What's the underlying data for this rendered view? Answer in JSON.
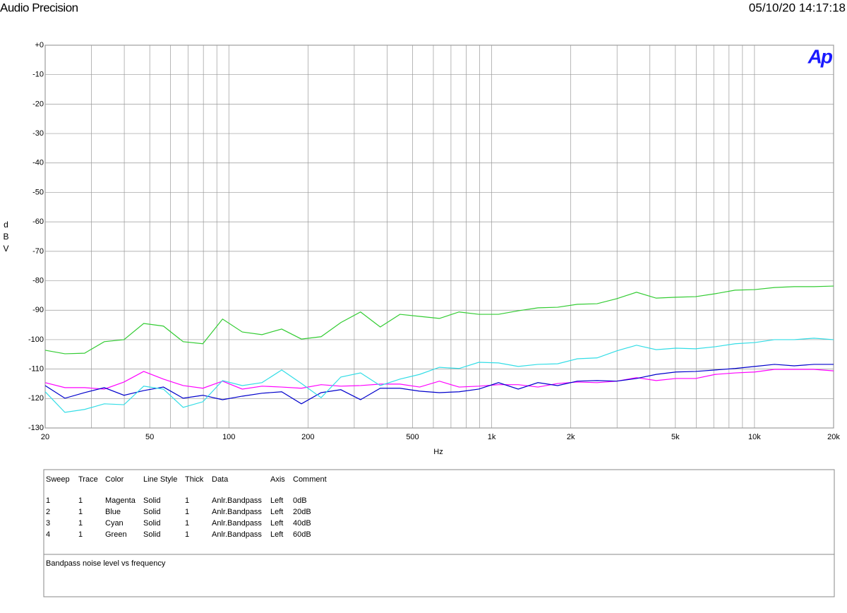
{
  "header": {
    "title": "Audio Precision",
    "timestamp": "05/10/20 14:17:18",
    "logo": "Ap"
  },
  "chart_data": {
    "type": "line",
    "xlabel": "Hz",
    "ylabel": "dBV",
    "xscale": "log",
    "grid": true,
    "xlim": [
      20,
      20000
    ],
    "ylim": [
      -130,
      0
    ],
    "xticks": [
      20,
      50,
      100,
      200,
      500,
      {
        "value": 1000,
        "label": "1k"
      },
      {
        "value": 2000,
        "label": "2k"
      },
      {
        "value": 5000,
        "label": "5k"
      },
      {
        "value": 10000,
        "label": "10k"
      },
      {
        "value": 20000,
        "label": "20k"
      }
    ],
    "xminor": [
      30,
      40,
      60,
      70,
      80,
      90,
      300,
      400,
      600,
      700,
      800,
      900,
      3000,
      4000,
      6000,
      7000,
      8000,
      9000
    ],
    "yticks": [
      {
        "value": 0,
        "label": "+0"
      },
      -10,
      -20,
      -30,
      -40,
      -50,
      -60,
      -70,
      -80,
      -90,
      -100,
      -110,
      -120,
      -130
    ],
    "x": [
      20,
      23.77,
      28.25,
      33.57,
      39.9,
      47.42,
      56.36,
      66.99,
      79.62,
      94.62,
      112.47,
      133.67,
      158.87,
      188.81,
      224.4,
      266.7,
      316.98,
      376.7,
      447.7,
      532.1,
      632.5,
      751.7,
      893.4,
      1061.8,
      1262,
      1500,
      1782,
      2118,
      2518,
      2992,
      3557,
      4227,
      5024,
      5971,
      7097,
      8435,
      10025,
      11915,
      14161,
      16830,
      20000
    ],
    "series": [
      {
        "color": "#ff00ff",
        "values": [
          -114.6,
          -116.3,
          -116.3,
          -116.8,
          -114.4,
          -110.8,
          -113.4,
          -115.6,
          -116.5,
          -114.1,
          -116.8,
          -115.8,
          -116.1,
          -116.5,
          -115.3,
          -115.8,
          -115.6,
          -115.1,
          -115.1,
          -116.1,
          -114.1,
          -116.1,
          -115.8,
          -115.3,
          -115.3,
          -116.1,
          -114.9,
          -114.4,
          -114.6,
          -114.1,
          -112.9,
          -113.9,
          -113.2,
          -113.2,
          -111.8,
          -111.3,
          -111.0,
          -110.1,
          -110.1,
          -110.1,
          -110.6
        ]
      },
      {
        "color": "#0000cc",
        "values": [
          -115.6,
          -119.9,
          -118.0,
          -116.3,
          -118.9,
          -117.3,
          -116.1,
          -119.9,
          -118.9,
          -120.4,
          -119.2,
          -118.2,
          -117.7,
          -121.8,
          -118.0,
          -117.0,
          -120.4,
          -116.5,
          -116.5,
          -117.5,
          -118.0,
          -117.7,
          -116.8,
          -114.6,
          -116.8,
          -114.6,
          -115.6,
          -114.1,
          -113.9,
          -114.1,
          -113.2,
          -111.8,
          -111.0,
          -110.8,
          -110.3,
          -109.8,
          -109.1,
          -108.4,
          -108.9,
          -108.4,
          -108.4
        ]
      },
      {
        "color": "#33dde6",
        "values": [
          -117.7,
          -124.7,
          -123.7,
          -121.8,
          -122.1,
          -115.8,
          -116.8,
          -123.0,
          -121.1,
          -113.9,
          -115.6,
          -114.6,
          -110.3,
          -114.9,
          -119.7,
          -112.7,
          -111.3,
          -115.6,
          -113.4,
          -111.8,
          -109.4,
          -109.8,
          -107.7,
          -107.9,
          -109.1,
          -108.4,
          -108.2,
          -106.5,
          -106.2,
          -103.8,
          -101.9,
          -103.4,
          -102.9,
          -103.1,
          -102.4,
          -101.4,
          -101.0,
          -100.0,
          -100.0,
          -99.5,
          -100.0
        ]
      },
      {
        "color": "#33cc33",
        "values": [
          -103.6,
          -104.8,
          -104.6,
          -100.7,
          -100.0,
          -94.5,
          -95.4,
          -100.7,
          -101.4,
          -93.0,
          -97.4,
          -98.3,
          -96.4,
          -99.8,
          -99.0,
          -94.2,
          -90.6,
          -95.7,
          -91.4,
          -92.1,
          -92.8,
          -90.6,
          -91.4,
          -91.4,
          -90.2,
          -89.2,
          -89.0,
          -88.0,
          -87.8,
          -86.1,
          -83.9,
          -85.9,
          -85.6,
          -85.4,
          -84.4,
          -83.2,
          -83.0,
          -82.3,
          -82.0,
          -82.0,
          -81.8
        ]
      }
    ]
  },
  "table": {
    "columns": [
      "Sweep",
      "Trace",
      "Color",
      "Line Style",
      "Thick",
      "Data",
      "Axis",
      "Comment"
    ],
    "rows": [
      [
        "1",
        "1",
        "Magenta",
        "Solid",
        "1",
        "Anlr.Bandpass",
        "Left",
        "0dB"
      ],
      [
        "2",
        "1",
        "Blue",
        "Solid",
        "1",
        "Anlr.Bandpass",
        "Left",
        "20dB"
      ],
      [
        "3",
        "1",
        "Cyan",
        "Solid",
        "1",
        "Anlr.Bandpass",
        "Left",
        "40dB"
      ],
      [
        "4",
        "1",
        "Green",
        "Solid",
        "1",
        "Anlr.Bandpass",
        "Left",
        "60dB"
      ]
    ]
  },
  "comment": "Bandpass noise level vs frequency"
}
